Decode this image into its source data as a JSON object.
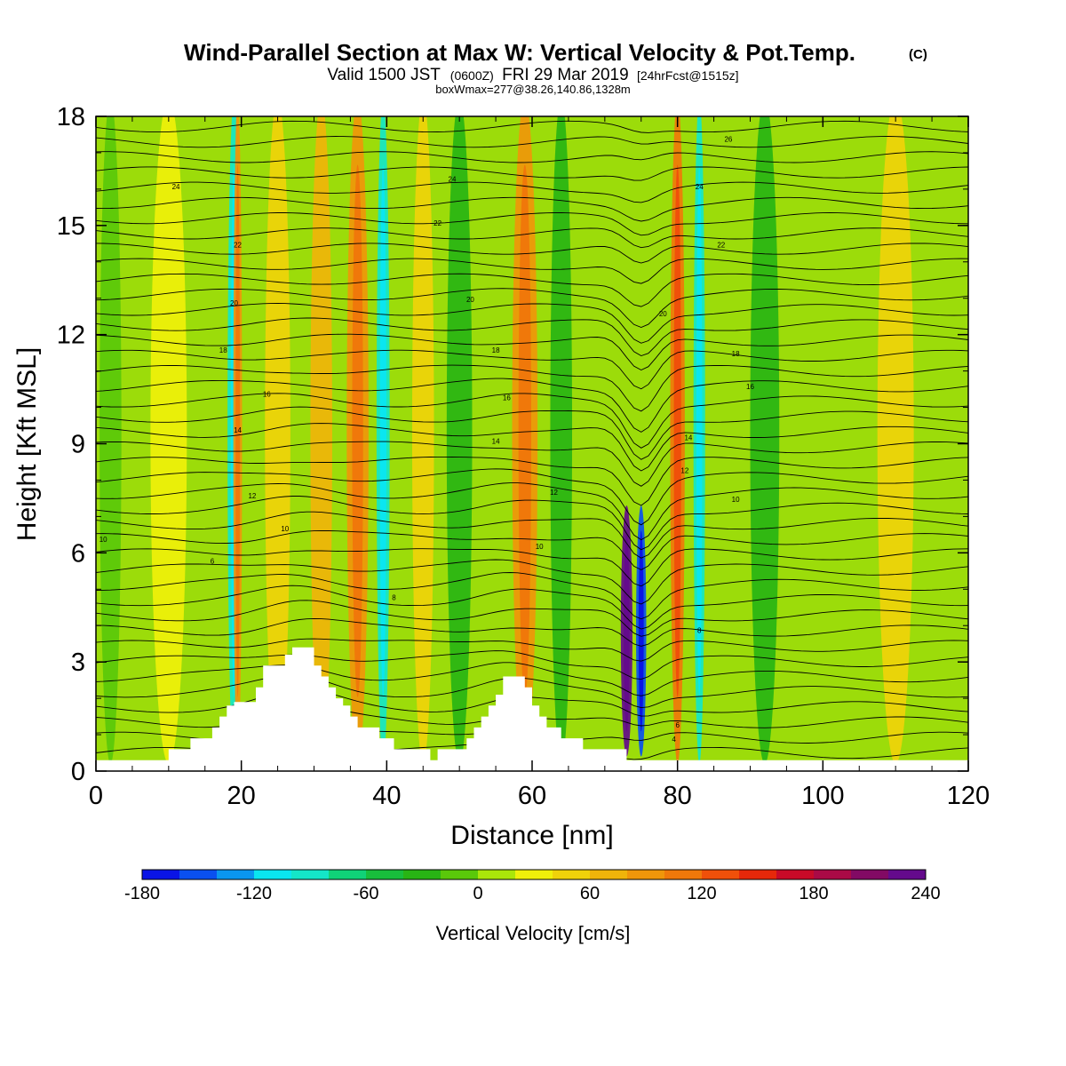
{
  "chart_data": {
    "type": "heatmap",
    "title": "Wind-Parallel Section at Max W: Vertical Velocity & Pot.Temp.",
    "title_mark": "(C)",
    "subtitle_parts": [
      "Valid 1500 JST",
      "(0600Z)",
      "FRI 29 Mar 2019",
      "[24hrFcst@1515z]"
    ],
    "subtitle2": "boxWmax=277@38.26,140.86,1328m",
    "xlabel": "Distance [nm]",
    "ylabel": "Height [Kft MSL]",
    "xlim": [
      0,
      120
    ],
    "ylim": [
      0,
      18
    ],
    "x_ticks": [
      "0",
      "20",
      "40",
      "60",
      "80",
      "100",
      "120"
    ],
    "y_ticks": [
      "0",
      "3",
      "6",
      "9",
      "12",
      "15",
      "18"
    ],
    "colorbar": {
      "label": "Vertical Velocity [cm/s]",
      "range": [
        -180,
        240
      ],
      "tick_labels": [
        "-180",
        "-120",
        "-60",
        "0",
        "60",
        "120",
        "180",
        "240"
      ],
      "colors": [
        "#0a14e6",
        "#0a50f0",
        "#0a96f0",
        "#0ae6f0",
        "#14e6c8",
        "#10d278",
        "#18be3c",
        "#28b414",
        "#5ac80a",
        "#aae60a",
        "#f0f00a",
        "#f0d20a",
        "#f0b40a",
        "#f0960a",
        "#f0780a",
        "#f0500a",
        "#e6280a",
        "#c80a28",
        "#aa0a46",
        "#820a64",
        "#640a8c"
      ]
    },
    "vertical_velocity_features": [
      {
        "x": 2,
        "w": 3,
        "value": -20
      },
      {
        "x": 10,
        "w": 5,
        "value": 20
      },
      {
        "x": 19,
        "w": 1.8,
        "value": -90
      },
      {
        "x": 19.5,
        "w": 1.2,
        "value": 90
      },
      {
        "x": 25,
        "w": 3.5,
        "value": 40
      },
      {
        "x": 31,
        "w": 3,
        "value": 60
      },
      {
        "x": 36,
        "w": 3,
        "value": 80
      },
      {
        "x": 39.5,
        "w": 1.8,
        "value": -90
      },
      {
        "x": 45,
        "w": 3,
        "value": 40
      },
      {
        "x": 50,
        "w": 3.5,
        "value": -40
      },
      {
        "x": 59,
        "w": 3.5,
        "value": 90
      },
      {
        "x": 64,
        "w": 3,
        "value": -40
      },
      {
        "x": 73,
        "w": 1.6,
        "value": 225
      },
      {
        "x": 75,
        "w": 1.4,
        "value": -160
      },
      {
        "x": 80,
        "w": 2,
        "value": 100
      },
      {
        "x": 83,
        "w": 1.6,
        "value": -90
      },
      {
        "x": 92,
        "w": 4,
        "value": -40
      },
      {
        "x": 110,
        "w": 5,
        "value": 40
      }
    ],
    "potential_temperature_contours": [
      "4",
      "6",
      "8",
      "10",
      "12",
      "14",
      "16",
      "18",
      "20",
      "22",
      "24",
      "26"
    ],
    "terrain": [
      [
        0,
        0.3
      ],
      [
        10,
        0.3
      ],
      [
        10,
        0.6
      ],
      [
        13,
        0.6
      ],
      [
        13,
        0.9
      ],
      [
        16,
        0.9
      ],
      [
        16,
        1.2
      ],
      [
        17,
        1.2
      ],
      [
        17,
        1.5
      ],
      [
        18,
        1.5
      ],
      [
        18,
        1.8
      ],
      [
        19,
        1.8
      ],
      [
        19,
        1.9
      ],
      [
        22,
        1.9
      ],
      [
        22,
        2.3
      ],
      [
        23,
        2.3
      ],
      [
        23,
        2.9
      ],
      [
        26,
        2.9
      ],
      [
        26,
        3.2
      ],
      [
        27,
        3.2
      ],
      [
        27,
        3.4
      ],
      [
        30,
        3.4
      ],
      [
        30,
        2.9
      ],
      [
        31,
        2.9
      ],
      [
        31,
        2.6
      ],
      [
        32,
        2.6
      ],
      [
        32,
        2.3
      ],
      [
        33,
        2.3
      ],
      [
        33,
        2.0
      ],
      [
        34,
        2.0
      ],
      [
        34,
        1.8
      ],
      [
        35,
        1.8
      ],
      [
        35,
        1.5
      ],
      [
        36,
        1.5
      ],
      [
        36,
        1.2
      ],
      [
        39,
        1.2
      ],
      [
        39,
        0.9
      ],
      [
        41,
        0.9
      ],
      [
        41,
        0.6
      ],
      [
        46,
        0.6
      ],
      [
        46,
        0.3
      ],
      [
        47,
        0.3
      ],
      [
        47,
        0.6
      ],
      [
        51,
        0.6
      ],
      [
        51,
        0.9
      ],
      [
        52,
        0.9
      ],
      [
        52,
        1.2
      ],
      [
        53,
        1.2
      ],
      [
        53,
        1.5
      ],
      [
        54,
        1.5
      ],
      [
        54,
        1.8
      ],
      [
        55,
        1.8
      ],
      [
        55,
        2.1
      ],
      [
        56,
        2.1
      ],
      [
        56,
        2.6
      ],
      [
        59,
        2.6
      ],
      [
        59,
        2.3
      ],
      [
        60,
        2.3
      ],
      [
        60,
        1.8
      ],
      [
        61,
        1.8
      ],
      [
        61,
        1.5
      ],
      [
        62,
        1.5
      ],
      [
        62,
        1.2
      ],
      [
        64,
        1.2
      ],
      [
        64,
        0.9
      ],
      [
        67,
        0.9
      ],
      [
        67,
        0.6
      ],
      [
        73,
        0.6
      ],
      [
        73,
        0.3
      ],
      [
        120,
        0.3
      ]
    ],
    "grid": false
  }
}
